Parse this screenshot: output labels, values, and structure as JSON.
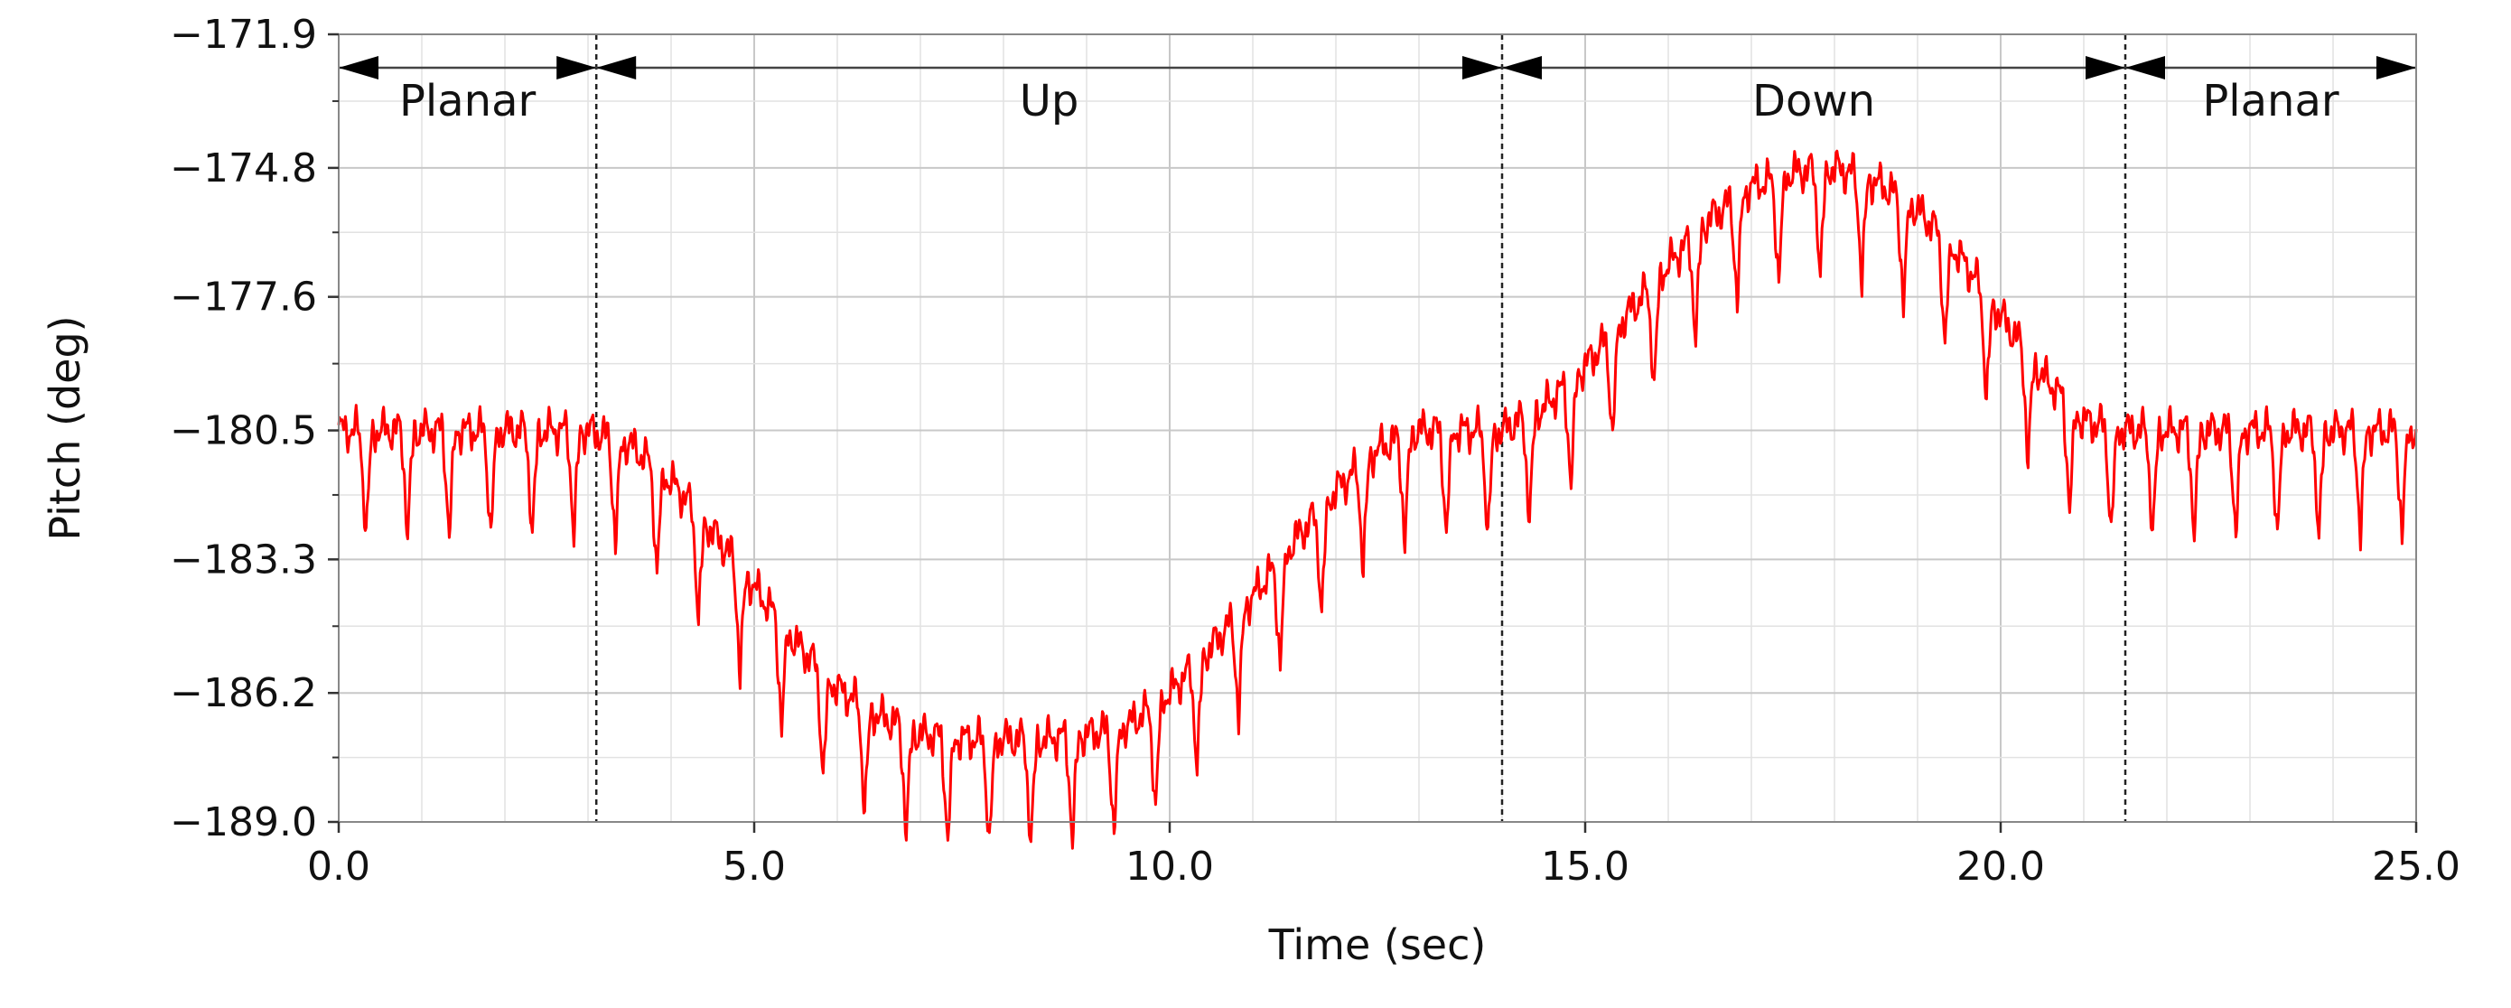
{
  "chart_data": {
    "type": "line",
    "title": "",
    "xlabel": "Time (sec)",
    "ylabel": "Pitch (deg)",
    "xlim": [
      0,
      25
    ],
    "ylim": [
      -189.0,
      -171.9
    ],
    "x_ticks": [
      0.0,
      5.0,
      10.0,
      15.0,
      20.0,
      25.0
    ],
    "x_tick_labels": [
      "0.0",
      "5.0",
      "10.0",
      "15.0",
      "20.0",
      "25.0"
    ],
    "y_ticks": [
      -171.9,
      -174.8,
      -177.6,
      -180.5,
      -183.3,
      -186.2,
      -189.0
    ],
    "y_tick_labels": [
      "−171.9",
      "−174.8",
      "−177.6",
      "−180.5",
      "−183.3",
      "−186.2",
      "−189.0"
    ],
    "grid": true,
    "series_color": "#ff0000",
    "phases": [
      {
        "label": "Planar",
        "start": 0.0,
        "end": 3.1
      },
      {
        "label": "Up",
        "start": 3.1,
        "end": 14.0
      },
      {
        "label": "Down",
        "start": 14.0,
        "end": 21.5
      },
      {
        "label": "Planar",
        "start": 21.5,
        "end": 25.0
      }
    ],
    "boundaries": [
      3.1,
      14.0,
      21.5
    ],
    "series": [
      {
        "x": [
          0.0,
          0.5,
          1.0,
          1.5,
          2.0,
          2.5,
          3.0,
          3.5,
          4.0,
          4.5,
          5.0,
          5.5,
          6.0,
          6.5,
          7.0,
          7.5,
          8.0,
          8.5,
          9.0,
          9.5,
          10.0,
          10.5,
          11.0,
          11.5,
          12.0,
          12.5,
          13.0,
          13.5,
          14.0,
          14.5,
          15.0,
          15.5,
          16.0,
          16.5,
          17.0,
          17.5,
          18.0,
          18.5,
          19.0,
          19.5,
          20.0,
          20.5,
          21.0,
          21.5,
          22.0,
          22.5,
          23.0,
          23.5,
          24.0,
          24.5,
          25.0
        ],
        "y": [
          -180.5,
          -180.5,
          -180.5,
          -180.5,
          -180.5,
          -180.5,
          -180.5,
          -180.8,
          -181.6,
          -182.7,
          -183.9,
          -185.1,
          -186.1,
          -186.7,
          -187.1,
          -187.2,
          -187.2,
          -187.2,
          -187.1,
          -186.9,
          -186.2,
          -185.2,
          -184.1,
          -182.9,
          -181.8,
          -180.9,
          -180.5,
          -180.5,
          -180.5,
          -180.0,
          -179.1,
          -178.0,
          -176.9,
          -175.9,
          -175.2,
          -174.9,
          -174.8,
          -175.1,
          -175.7,
          -176.7,
          -178.0,
          -179.3,
          -180.3,
          -180.5,
          -180.5,
          -180.5,
          -180.5,
          -180.5,
          -180.5,
          -180.5,
          -180.5
        ],
        "oscillation_period_sec": 0.5,
        "oscillation_amplitude_deg": 2.3
      }
    ]
  }
}
